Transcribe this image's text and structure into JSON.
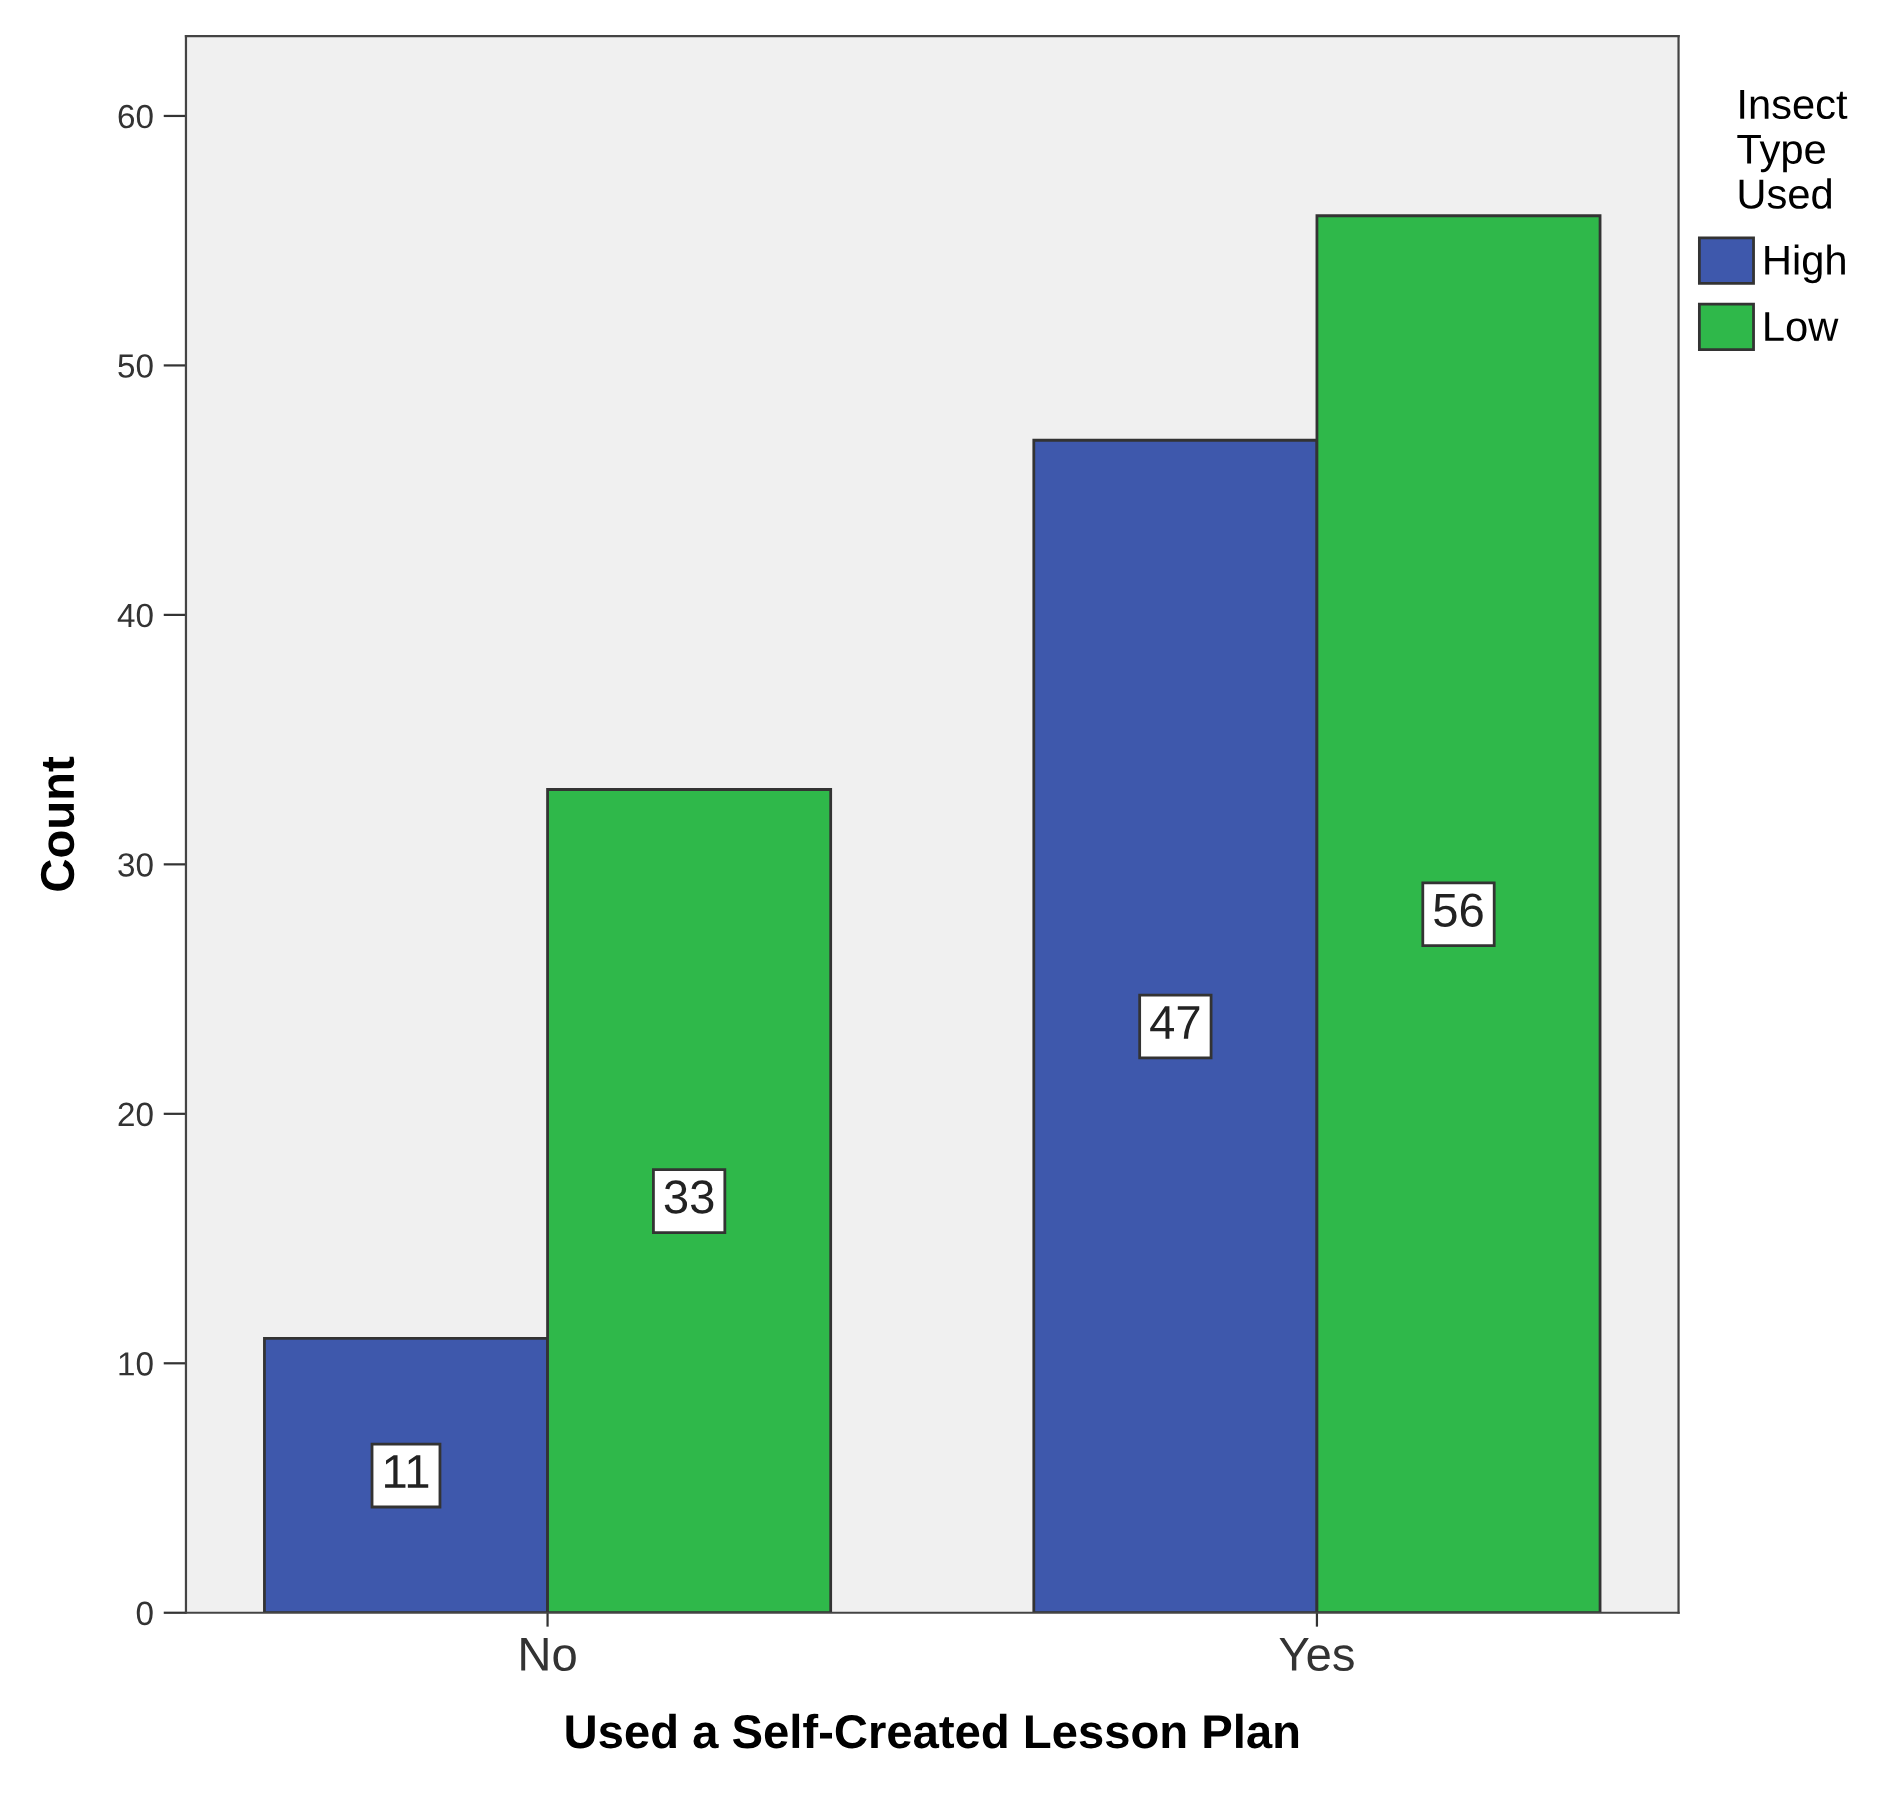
{
  "chart_data": {
    "type": "bar",
    "xlabel": "Used a Self-Created Lesson Plan",
    "ylabel": "Count",
    "legend_title": "Insect Type Used",
    "categories": [
      "No",
      "Yes"
    ],
    "series": [
      {
        "name": "High",
        "color": "#3e58ac",
        "values": [
          11,
          47
        ]
      },
      {
        "name": "Low",
        "color": "#2fb84a",
        "values": [
          33,
          56
        ]
      }
    ],
    "ylim": [
      0,
      63.2
    ],
    "yticks": [
      0,
      10,
      20,
      30,
      40,
      50,
      60
    ],
    "grid": false,
    "legend": "top right",
    "data_labels": true
  }
}
